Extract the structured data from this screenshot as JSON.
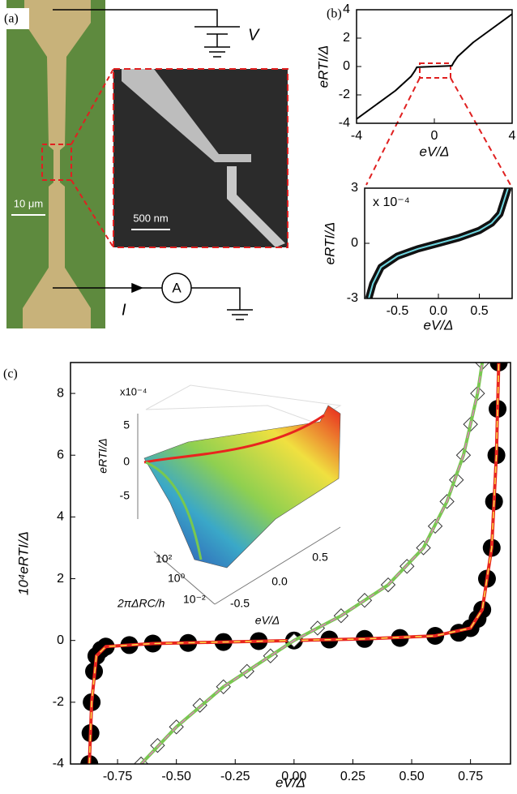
{
  "panel_labels": [
    "(a)",
    "(b)",
    "(c)"
  ],
  "micrograph": {
    "scale_bar": "10 μm",
    "inset_scale_bar": "500 nm",
    "voltage_label": "V",
    "current_label": "I",
    "ammeter": "A"
  },
  "inset": {
    "multiplier": "x10⁻⁴",
    "z_label": "eRTI/Δ",
    "x_label": "eV/Δ",
    "y_label": "2πΔRC/h",
    "z_ticks": [
      "5",
      "0",
      "-5"
    ],
    "x_ticks": [
      "-0.5",
      "0.0",
      "0.5"
    ],
    "y_ticks": [
      "10²",
      "10⁰",
      "10⁻²"
    ]
  },
  "chart_data": [
    {
      "type": "line",
      "x_label": "eV/Δ",
      "y_label": "eRTI/Δ",
      "xlim": [
        -4,
        4
      ],
      "ylim": [
        -4,
        4
      ],
      "xticks": [
        -4,
        0,
        4
      ],
      "yticks": [
        -4,
        -2,
        0,
        2,
        4
      ],
      "series": [
        {
          "color": "#000000",
          "width": 2,
          "x": [
            -4,
            -3,
            -2,
            -1.2,
            -1,
            -0.9,
            0,
            0.9,
            1,
            1.2,
            2,
            3,
            4
          ],
          "values": [
            -3.7,
            -2.7,
            -1.7,
            -0.7,
            -0.3,
            -0.05,
            0,
            0.05,
            0.3,
            0.7,
            1.7,
            2.7,
            3.7
          ]
        }
      ]
    },
    {
      "type": "line",
      "x_label": "eV/Δ",
      "y_label": "eRTI/Δ",
      "annotation": "x 10⁻⁴",
      "xlim": [
        -0.9,
        0.9
      ],
      "ylim": [
        -3,
        3
      ],
      "xticks": [
        -0.5,
        {
          "value": 0,
          "label": "0.0"
        },
        0.5
      ],
      "yticks": [
        -3,
        0,
        3
      ],
      "series": [
        {
          "color": "#111111",
          "width": 9,
          "x": [
            -0.85,
            -0.8,
            -0.7,
            -0.5,
            -0.25,
            0,
            0.25,
            0.5,
            0.65,
            0.75,
            0.8,
            0.85
          ],
          "values": [
            -3,
            -2.2,
            -1.3,
            -0.7,
            -0.3,
            0,
            0.3,
            0.7,
            1.1,
            1.6,
            2.3,
            3
          ]
        },
        {
          "color": "#6fd6e0",
          "width": 2,
          "x": [
            -0.85,
            -0.8,
            -0.7,
            -0.5,
            -0.25,
            0,
            0.25,
            0.5,
            0.65,
            0.75,
            0.8,
            0.85
          ],
          "values": [
            -3,
            -2.2,
            -1.3,
            -0.7,
            -0.3,
            0,
            0.3,
            0.7,
            1.1,
            1.6,
            2.3,
            3
          ]
        }
      ]
    },
    {
      "type": "line",
      "x_label": "eV/Δ",
      "y_label": "10⁴eRTI/Δ",
      "xlim": [
        -0.95,
        0.92
      ],
      "ylim": [
        -4,
        9
      ],
      "xticks": [
        -0.75,
        {
          "value": -0.5,
          "label": "-0.50"
        },
        -0.25,
        {
          "value": 0,
          "label": "0.00"
        },
        0.25,
        {
          "value": 0.5,
          "label": "0.50"
        },
        0.75
      ],
      "yticks": [
        -4,
        -2,
        0,
        2,
        4,
        6,
        8
      ],
      "series": [
        {
          "color": "#000000",
          "marker": "circle",
          "x": [
            -0.87,
            -0.865,
            -0.86,
            -0.85,
            -0.84,
            -0.82,
            -0.8,
            -0.7,
            -0.6,
            -0.45,
            -0.3,
            -0.15,
            0,
            0.15,
            0.3,
            0.45,
            0.6,
            0.7,
            0.75,
            0.78,
            0.8,
            0.82,
            0.84,
            0.85,
            0.86,
            0.865,
            0.87
          ],
          "values": [
            -4,
            -3,
            -2,
            -1,
            -0.5,
            -0.3,
            -0.2,
            -0.15,
            -0.1,
            -0.08,
            -0.05,
            -0.02,
            0,
            0.03,
            0.05,
            0.08,
            0.15,
            0.25,
            0.4,
            0.7,
            1,
            2,
            3,
            4.5,
            6,
            7.5,
            9
          ]
        },
        {
          "color": "#e8251e",
          "width": 4,
          "dash_color": "#ffe24a",
          "x": [
            -0.87,
            -0.86,
            -0.84,
            -0.8,
            -0.6,
            -0.3,
            0,
            0.3,
            0.6,
            0.75,
            0.8,
            0.84,
            0.86,
            0.87
          ],
          "values": [
            -4,
            -2,
            -0.5,
            -0.2,
            -0.1,
            -0.05,
            0,
            0.05,
            0.15,
            0.4,
            1,
            3,
            6,
            9
          ]
        },
        {
          "color": "#333333",
          "marker": "diamond",
          "x": [
            -0.65,
            -0.58,
            -0.5,
            -0.4,
            -0.3,
            -0.2,
            -0.1,
            0,
            0.1,
            0.2,
            0.3,
            0.4,
            0.48,
            0.55,
            0.6,
            0.65,
            0.69,
            0.72,
            0.75,
            0.78,
            0.8
          ],
          "values": [
            -4,
            -3.4,
            -2.8,
            -2.1,
            -1.5,
            -1,
            -0.5,
            0,
            0.4,
            0.8,
            1.3,
            1.8,
            2.4,
            3,
            3.7,
            4.5,
            5.2,
            6,
            7,
            8,
            9
          ]
        },
        {
          "color": "#78c850",
          "width": 4,
          "dash_color": "#e07fbf",
          "x": [
            -0.65,
            -0.5,
            -0.3,
            -0.1,
            0,
            0.2,
            0.4,
            0.55,
            0.65,
            0.72,
            0.78,
            0.8
          ],
          "values": [
            -4,
            -2.8,
            -1.5,
            -0.5,
            0,
            0.8,
            1.8,
            3,
            4.5,
            6,
            8,
            9
          ]
        }
      ]
    }
  ]
}
